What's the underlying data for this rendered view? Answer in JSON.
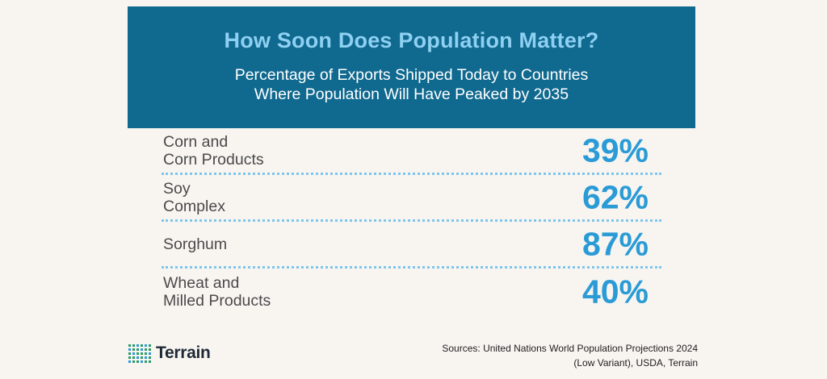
{
  "header": {
    "title": "How Soon Does Population Matter?",
    "subtitle_line1": "Percentage of Exports Shipped Today to Countries",
    "subtitle_line2": "Where Population Will Have Peaked by 2035"
  },
  "chart_data": {
    "type": "table",
    "title": "How Soon Does Population Matter?",
    "subtitle": "Percentage of Exports Shipped Today to Countries Where Population Will Have Peaked by 2035",
    "categories": [
      "Corn and Corn Products",
      "Soy Complex",
      "Sorghum",
      "Wheat and Milled Products"
    ],
    "values": [
      39,
      62,
      87,
      40
    ],
    "rows": [
      {
        "label_line1": "Corn and",
        "label_line2": "Corn Products",
        "value": "39%"
      },
      {
        "label_line1": "Soy",
        "label_line2": "Complex",
        "value": "62%"
      },
      {
        "label_line1": "Sorghum",
        "label_line2": "",
        "value": "87%"
      },
      {
        "label_line1": "Wheat and",
        "label_line2": "Milled Products",
        "value": "40%"
      }
    ]
  },
  "footer": {
    "logo_text": "Terrain",
    "sources_line1": "Sources: United Nations World Population Projections 2024",
    "sources_line2": "(Low Variant), USDA, Terrain"
  },
  "colors": {
    "header_bg": "#10698f",
    "title": "#8ed0f1",
    "value": "#2a9bd6",
    "divider": "#7cc6ec",
    "background": "#f8f5f1"
  }
}
